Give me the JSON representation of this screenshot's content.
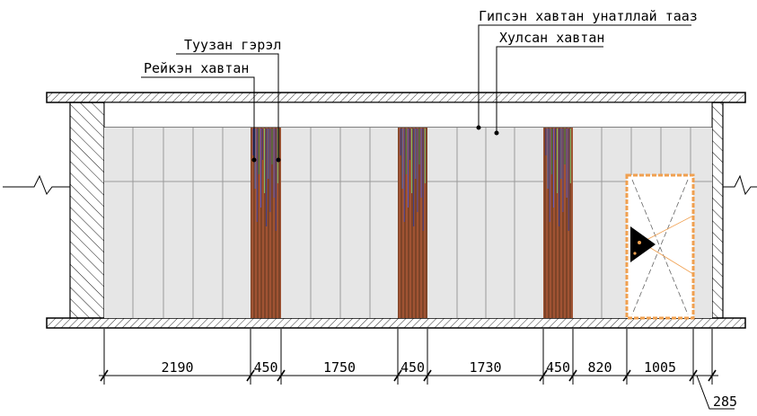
{
  "callouts": {
    "ceiling": "Гипсэн хавтан унатллай тааз",
    "covered_panel": "Хулсан хавтан",
    "light_source": "Туузан гэрэл",
    "reiken_panel": "Рейкэн хавтан"
  },
  "dimensions": [
    "2190",
    "450",
    "1750",
    "450",
    "1730",
    "450",
    "820",
    "1005"
  ],
  "dimension_extra": "285",
  "colors": {
    "panel_fill": "#e6e6e6",
    "panel_line": "#9a9a9a",
    "reiken_base": "#8a4a2a",
    "door_frame": "#f0a050",
    "slab_line": "#000000"
  }
}
